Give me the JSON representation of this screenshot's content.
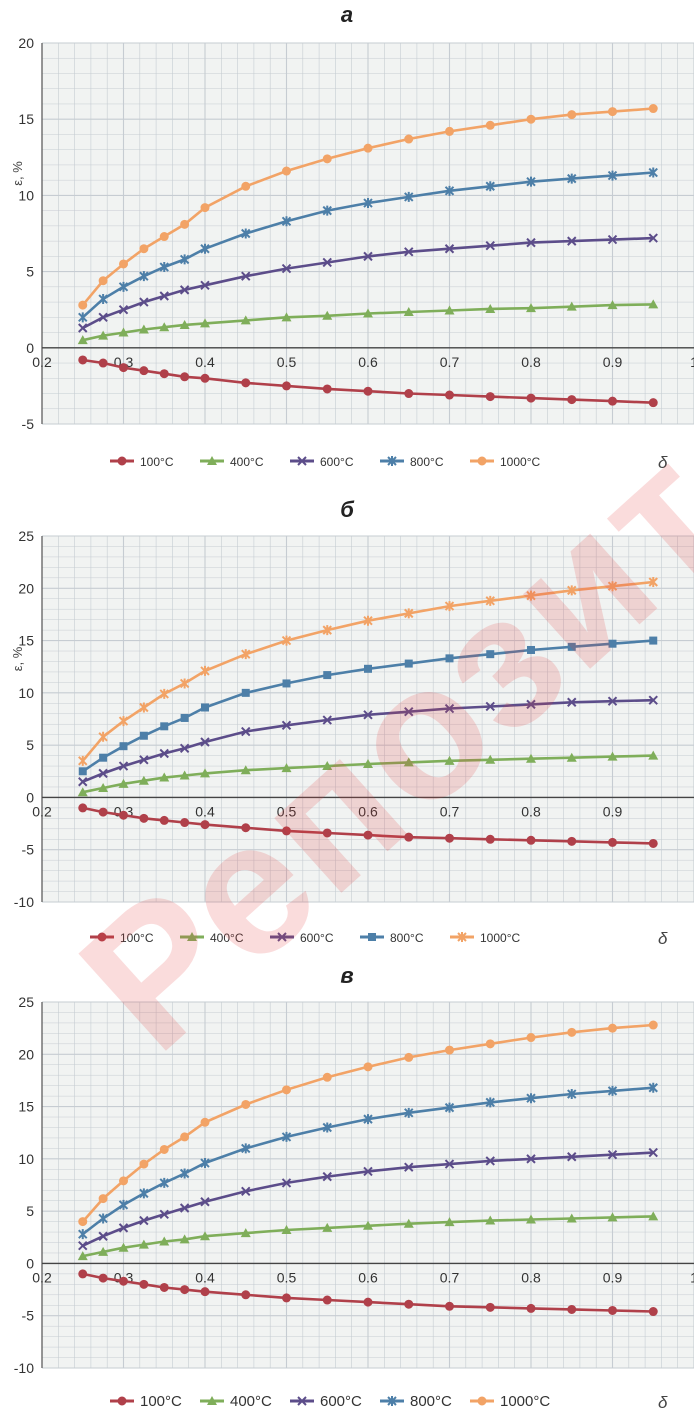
{
  "watermark": "Репозиторий",
  "colors": {
    "100°C": "#b0404a",
    "400°C": "#7fae5a",
    "600°C": "#5c4d8a",
    "800°C": "#4d7fa8",
    "1000°C": "#f2a366",
    "grid": "#c6ccd2",
    "panel_bg": "#f1f3f2"
  },
  "chart_data": [
    {
      "type": "line",
      "title": "а",
      "ylabel": "ε, %",
      "xlabel": "δ",
      "xlim": [
        0.2,
        1
      ],
      "ylim": [
        -5,
        20
      ],
      "xticks": [
        "0.2",
        "0.3",
        "0.4",
        "0.5",
        "0.6",
        "0.7",
        "0.8",
        "0.9",
        "1"
      ],
      "yticks": [
        "-5",
        "0",
        "5",
        "10",
        "15",
        "20"
      ],
      "legend": "bottom",
      "grid": true,
      "x": [
        0.25,
        0.275,
        0.3,
        0.325,
        0.35,
        0.375,
        0.4,
        0.45,
        0.5,
        0.55,
        0.6,
        0.65,
        0.7,
        0.75,
        0.8,
        0.85,
        0.9,
        0.95
      ],
      "series": [
        {
          "name": "100°C",
          "marker": "circle",
          "values": [
            -0.8,
            -1.0,
            -1.3,
            -1.5,
            -1.7,
            -1.9,
            -2.0,
            -2.3,
            -2.5,
            -2.7,
            -2.85,
            -3.0,
            -3.1,
            -3.2,
            -3.3,
            -3.4,
            -3.5,
            -3.6
          ]
        },
        {
          "name": "400°C",
          "marker": "triangle",
          "values": [
            0.5,
            0.8,
            1.0,
            1.2,
            1.35,
            1.5,
            1.6,
            1.8,
            2.0,
            2.1,
            2.25,
            2.35,
            2.45,
            2.55,
            2.6,
            2.7,
            2.8,
            2.85
          ]
        },
        {
          "name": "600°C",
          "marker": "cross",
          "values": [
            1.3,
            2.0,
            2.5,
            3.0,
            3.4,
            3.8,
            4.1,
            4.7,
            5.2,
            5.6,
            6.0,
            6.3,
            6.5,
            6.7,
            6.9,
            7.0,
            7.1,
            7.2
          ]
        },
        {
          "name": "800°C",
          "marker": "star",
          "values": [
            2.0,
            3.2,
            4.0,
            4.7,
            5.3,
            5.8,
            6.5,
            7.5,
            8.3,
            9.0,
            9.5,
            9.9,
            10.3,
            10.6,
            10.9,
            11.1,
            11.3,
            11.5
          ]
        },
        {
          "name": "1000°C",
          "marker": "circle",
          "values": [
            2.8,
            4.4,
            5.5,
            6.5,
            7.3,
            8.1,
            9.2,
            10.6,
            11.6,
            12.4,
            13.1,
            13.7,
            14.2,
            14.6,
            15.0,
            15.3,
            15.5,
            15.7
          ]
        }
      ]
    },
    {
      "type": "line",
      "title": "б",
      "ylabel": "ε, %",
      "xlabel": "δ",
      "xlim": [
        0.2,
        1
      ],
      "ylim": [
        -10,
        25
      ],
      "xticks": [
        "0.2",
        "0.3",
        "0.4",
        "0.5",
        "0.6",
        "0.7",
        "0.8",
        "0.9"
      ],
      "yticks": [
        "-10",
        "-5",
        "0",
        "5",
        "10",
        "15",
        "20",
        "25"
      ],
      "legend": "bottom",
      "grid": true,
      "x": [
        0.25,
        0.275,
        0.3,
        0.325,
        0.35,
        0.375,
        0.4,
        0.45,
        0.5,
        0.55,
        0.6,
        0.65,
        0.7,
        0.75,
        0.8,
        0.85,
        0.9,
        0.95
      ],
      "series": [
        {
          "name": "100°C",
          "marker": "circle",
          "values": [
            -1.0,
            -1.4,
            -1.7,
            -2.0,
            -2.2,
            -2.4,
            -2.6,
            -2.9,
            -3.2,
            -3.4,
            -3.6,
            -3.8,
            -3.9,
            -4.0,
            -4.1,
            -4.2,
            -4.3,
            -4.4
          ]
        },
        {
          "name": "400°C",
          "marker": "triangle",
          "values": [
            0.5,
            0.9,
            1.3,
            1.6,
            1.9,
            2.1,
            2.3,
            2.6,
            2.8,
            3.0,
            3.2,
            3.35,
            3.5,
            3.6,
            3.7,
            3.8,
            3.9,
            4.0
          ]
        },
        {
          "name": "600°C",
          "marker": "cross",
          "values": [
            1.5,
            2.3,
            3.0,
            3.6,
            4.2,
            4.7,
            5.3,
            6.3,
            6.9,
            7.4,
            7.9,
            8.2,
            8.5,
            8.7,
            8.9,
            9.1,
            9.2,
            9.3
          ]
        },
        {
          "name": "800°C",
          "marker": "square",
          "values": [
            2.5,
            3.8,
            4.9,
            5.9,
            6.8,
            7.6,
            8.6,
            10.0,
            10.9,
            11.7,
            12.3,
            12.8,
            13.3,
            13.7,
            14.1,
            14.4,
            14.7,
            15.0
          ]
        },
        {
          "name": "1000°C",
          "marker": "star",
          "values": [
            3.5,
            5.8,
            7.3,
            8.6,
            9.9,
            10.9,
            12.1,
            13.7,
            15.0,
            16.0,
            16.9,
            17.6,
            18.3,
            18.8,
            19.3,
            19.8,
            20.2,
            20.6
          ]
        }
      ]
    },
    {
      "type": "line",
      "title": "в",
      "ylabel": "",
      "xlabel": "δ",
      "xlim": [
        0.2,
        1
      ],
      "ylim": [
        -10,
        25
      ],
      "xticks": [
        "0.2",
        "0.3",
        "0.4",
        "0.5",
        "0.6",
        "0.7",
        "0.8",
        "0.9",
        "1"
      ],
      "yticks": [
        "-10",
        "-5",
        "0",
        "5",
        "10",
        "15",
        "20",
        "25"
      ],
      "legend": "bottom",
      "grid": true,
      "x": [
        0.25,
        0.275,
        0.3,
        0.325,
        0.35,
        0.375,
        0.4,
        0.45,
        0.5,
        0.55,
        0.6,
        0.65,
        0.7,
        0.75,
        0.8,
        0.85,
        0.9,
        0.95
      ],
      "series": [
        {
          "name": "100°C",
          "marker": "circle",
          "values": [
            -1.0,
            -1.4,
            -1.7,
            -2.0,
            -2.3,
            -2.5,
            -2.7,
            -3.0,
            -3.3,
            -3.5,
            -3.7,
            -3.9,
            -4.1,
            -4.2,
            -4.3,
            -4.4,
            -4.5,
            -4.6
          ]
        },
        {
          "name": "400°C",
          "marker": "triangle",
          "values": [
            0.7,
            1.1,
            1.5,
            1.8,
            2.1,
            2.3,
            2.6,
            2.9,
            3.2,
            3.4,
            3.6,
            3.8,
            3.95,
            4.1,
            4.2,
            4.3,
            4.4,
            4.5
          ]
        },
        {
          "name": "600°C",
          "marker": "cross",
          "values": [
            1.7,
            2.6,
            3.4,
            4.1,
            4.7,
            5.3,
            5.9,
            6.9,
            7.7,
            8.3,
            8.8,
            9.2,
            9.5,
            9.8,
            10.0,
            10.2,
            10.4,
            10.6
          ]
        },
        {
          "name": "800°C",
          "marker": "star",
          "values": [
            2.8,
            4.3,
            5.6,
            6.7,
            7.7,
            8.6,
            9.6,
            11.0,
            12.1,
            13.0,
            13.8,
            14.4,
            14.9,
            15.4,
            15.8,
            16.2,
            16.5,
            16.8
          ]
        },
        {
          "name": "1000°C",
          "marker": "circle",
          "values": [
            4.0,
            6.2,
            7.9,
            9.5,
            10.9,
            12.1,
            13.5,
            15.2,
            16.6,
            17.8,
            18.8,
            19.7,
            20.4,
            21.0,
            21.6,
            22.1,
            22.5,
            22.8
          ]
        }
      ]
    }
  ]
}
